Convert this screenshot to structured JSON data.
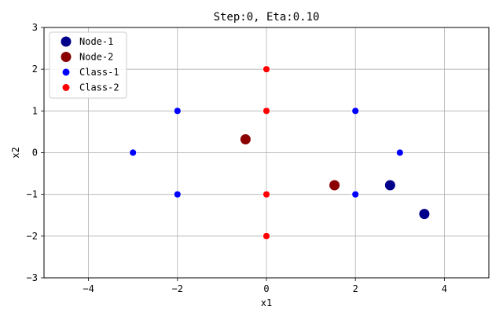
{
  "chart_data": {
    "type": "scatter",
    "title": "Step:0, Eta:0.10",
    "xlabel": "x1",
    "ylabel": "x2",
    "xlim": [
      -5,
      5
    ],
    "ylim": [
      -3,
      3
    ],
    "xticks": [
      -4,
      -2,
      0,
      2,
      4
    ],
    "yticks": [
      -3,
      -2,
      -1,
      0,
      1,
      2,
      3
    ],
    "grid": true,
    "legend_position": "top-left",
    "series": [
      {
        "name": "Node-1",
        "color": "#00008b",
        "marker": "large-circle",
        "points": [
          [
            2.78,
            -0.78
          ],
          [
            3.55,
            -1.47
          ]
        ]
      },
      {
        "name": "Node-2",
        "color": "#8b0000",
        "marker": "large-circle",
        "points": [
          [
            -0.47,
            0.32
          ],
          [
            1.53,
            -0.78
          ]
        ]
      },
      {
        "name": "Class-1",
        "color": "#0000ff",
        "marker": "small-circle",
        "points": [
          [
            -2,
            1
          ],
          [
            2,
            1
          ],
          [
            -3,
            0
          ],
          [
            3,
            0
          ],
          [
            -2,
            -1
          ],
          [
            2,
            -1
          ]
        ]
      },
      {
        "name": "Class-2",
        "color": "#ff0000",
        "marker": "small-circle",
        "points": [
          [
            0,
            2
          ],
          [
            0,
            1
          ],
          [
            0,
            -1
          ],
          [
            0,
            -2
          ]
        ]
      }
    ]
  }
}
